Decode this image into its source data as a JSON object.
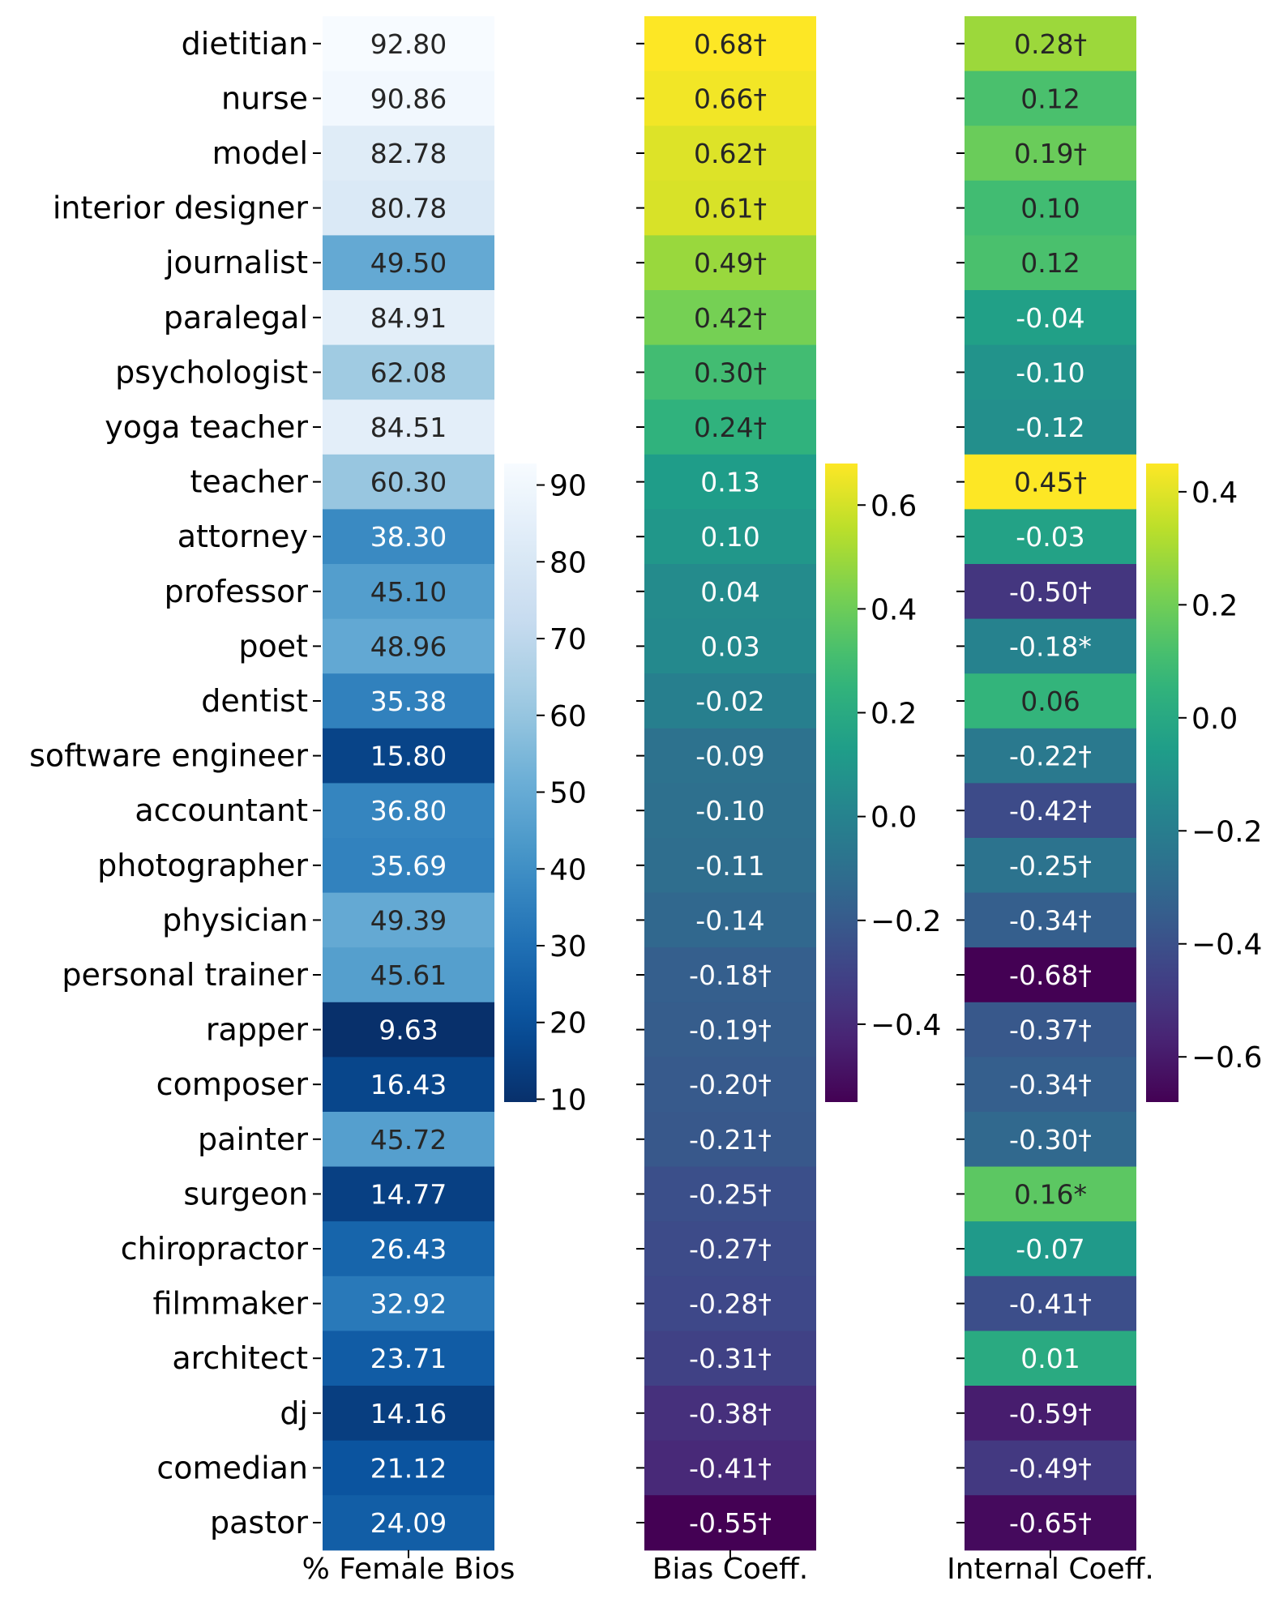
{
  "chart_data": {
    "type": "heatmap",
    "rows": [
      "dietitian",
      "nurse",
      "model",
      "interior designer",
      "journalist",
      "paralegal",
      "psychologist",
      "yoga teacher",
      "teacher",
      "attorney",
      "professor",
      "poet",
      "dentist",
      "software engineer",
      "accountant",
      "photographer",
      "physician",
      "personal trainer",
      "rapper",
      "composer",
      "painter",
      "surgeon",
      "chiropractor",
      "filmmaker",
      "architect",
      "dj",
      "comedian",
      "pastor"
    ],
    "panels": [
      {
        "xlabel": "% Female Bios",
        "colormap": "Blues_r",
        "range": [
          9.63,
          92.8
        ],
        "colorbar_ticks": [
          "10",
          "20",
          "30",
          "40",
          "50",
          "60",
          "70",
          "80",
          "90"
        ],
        "colorbar_tick_values": [
          10,
          20,
          30,
          40,
          50,
          60,
          70,
          80,
          90
        ],
        "values": [
          92.8,
          90.86,
          82.78,
          80.78,
          49.5,
          84.91,
          62.08,
          84.51,
          60.3,
          38.3,
          45.1,
          48.96,
          35.38,
          15.8,
          36.8,
          35.69,
          49.39,
          45.61,
          9.63,
          16.43,
          45.72,
          14.77,
          26.43,
          32.92,
          23.71,
          14.16,
          21.12,
          24.09
        ],
        "labels": [
          "92.80",
          "90.86",
          "82.78",
          "80.78",
          "49.50",
          "84.91",
          "62.08",
          "84.51",
          "60.30",
          "38.30",
          "45.10",
          "48.96",
          "35.38",
          "15.80",
          "36.80",
          "35.69",
          "49.39",
          "45.61",
          "9.63",
          "16.43",
          "45.72",
          "14.77",
          "26.43",
          "32.92",
          "23.71",
          "14.16",
          "21.12",
          "24.09"
        ]
      },
      {
        "xlabel": "Bias Coeff.",
        "colormap": "viridis",
        "range": [
          -0.55,
          0.68
        ],
        "colorbar_ticks": [
          "−0.4",
          "−0.2",
          "0.0",
          "0.2",
          "0.4",
          "0.6"
        ],
        "colorbar_tick_values": [
          -0.4,
          -0.2,
          0.0,
          0.2,
          0.4,
          0.6
        ],
        "values": [
          0.68,
          0.66,
          0.62,
          0.61,
          0.49,
          0.42,
          0.3,
          0.24,
          0.13,
          0.1,
          0.04,
          0.03,
          -0.02,
          -0.09,
          -0.1,
          -0.11,
          -0.14,
          -0.18,
          -0.19,
          -0.2,
          -0.21,
          -0.25,
          -0.27,
          -0.28,
          -0.31,
          -0.38,
          -0.41,
          -0.55
        ],
        "labels": [
          "0.68†",
          "0.66†",
          "0.62†",
          "0.61†",
          "0.49†",
          "0.42†",
          "0.30†",
          "0.24†",
          "0.13",
          "0.10",
          "0.04",
          "0.03",
          "-0.02",
          "-0.09",
          "-0.10",
          "-0.11",
          "-0.14",
          "-0.18†",
          "-0.19†",
          "-0.20†",
          "-0.21†",
          "-0.25†",
          "-0.27†",
          "-0.28†",
          "-0.31†",
          "-0.38†",
          "-0.41†",
          "-0.55†"
        ]
      },
      {
        "xlabel": "Internal Coeff.",
        "colormap": "viridis",
        "range": [
          -0.68,
          0.45
        ],
        "colorbar_ticks": [
          "−0.6",
          "−0.4",
          "−0.2",
          "0.0",
          "0.2",
          "0.4"
        ],
        "colorbar_tick_values": [
          -0.6,
          -0.4,
          -0.2,
          0.0,
          0.2,
          0.4
        ],
        "values": [
          0.28,
          0.12,
          0.19,
          0.1,
          0.12,
          -0.04,
          -0.1,
          -0.12,
          0.45,
          -0.03,
          -0.5,
          -0.18,
          0.06,
          -0.22,
          -0.42,
          -0.25,
          -0.34,
          -0.68,
          -0.37,
          -0.34,
          -0.3,
          0.16,
          -0.07,
          -0.41,
          0.01,
          -0.59,
          -0.49,
          -0.65
        ],
        "labels": [
          "0.28†",
          "0.12",
          "0.19†",
          "0.10",
          "0.12",
          "-0.04",
          "-0.10",
          "-0.12",
          "0.45†",
          "-0.03",
          "-0.50†",
          "-0.18*",
          "0.06",
          "-0.22†",
          "-0.42†",
          "-0.25†",
          "-0.34†",
          "-0.68†",
          "-0.37†",
          "-0.34†",
          "-0.30†",
          "0.16*",
          "-0.07",
          "-0.41†",
          "0.01",
          "-0.59†",
          "-0.49†",
          "-0.65†"
        ]
      }
    ]
  }
}
